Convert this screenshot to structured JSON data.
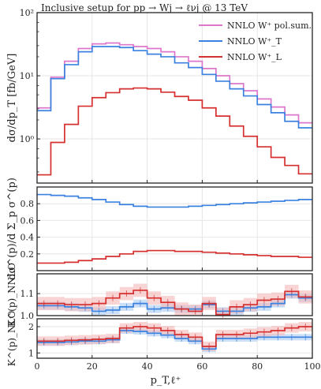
{
  "title": "Inclusive setup for pp → Wj → ℓνj @ 13 TeV",
  "legend": [
    {
      "label": "NNLO W⁺ pol.sum.",
      "color": "#dd77cc"
    },
    {
      "label": "NNLO W⁺_T",
      "color": "#3b82e0"
    },
    {
      "label": "NNLO W⁺_L",
      "color": "#d62f2f"
    }
  ],
  "colors": {
    "sum": "#dd77cc",
    "T": "#3b82e0",
    "L": "#d62f2f",
    "T_band": "#a9c9f2",
    "L_band": "#f4b7b7",
    "frame": "#222222"
  },
  "chart_data": [
    {
      "type": "line",
      "panel": "main",
      "ylabel": "dσ/dp_T [fb/GeV]",
      "yscale": "log",
      "ylim": [
        0.2,
        100
      ],
      "yticks": [
        "10⁰",
        "10¹",
        "10²"
      ],
      "x_edges": [
        0,
        5,
        10,
        15,
        20,
        25,
        30,
        35,
        40,
        45,
        50,
        55,
        60,
        65,
        70,
        75,
        80,
        85,
        90,
        95,
        100
      ],
      "series": [
        {
          "name": "NNLO W⁺ pol.sum.",
          "values": [
            3.1,
            9.5,
            17,
            27,
            32,
            33,
            31,
            29,
            27,
            24,
            20,
            17,
            13,
            10,
            7.5,
            5.8,
            4.3,
            3.2,
            2.4,
            1.8
          ]
        },
        {
          "name": "NNLO W⁺_T",
          "values": [
            2.8,
            9,
            15,
            24,
            29,
            29,
            28,
            25,
            22,
            20,
            16,
            13.5,
            10.5,
            8.2,
            6.2,
            4.8,
            3.5,
            2.6,
            1.9,
            1.5
          ]
        },
        {
          "name": "NNLO W⁺_L",
          "values": [
            0.27,
            0.88,
            1.7,
            3.3,
            4.5,
            5.4,
            6.2,
            6.4,
            6.2,
            5.5,
            4.7,
            4.1,
            3.1,
            2.3,
            1.6,
            1.1,
            0.75,
            0.51,
            0.38,
            0.28
          ]
        }
      ]
    },
    {
      "type": "line",
      "panel": "fraction",
      "ylabel": "dσ^(p)/d Σ_p σ^(p)",
      "yticks": [
        "0.2",
        "0.4",
        "0.6",
        "0.8"
      ],
      "ylim": [
        0,
        1.0
      ],
      "x_edges": [
        0,
        5,
        10,
        15,
        20,
        25,
        30,
        35,
        40,
        45,
        50,
        55,
        60,
        65,
        70,
        75,
        80,
        85,
        90,
        95,
        100
      ],
      "series": [
        {
          "name": "T",
          "values": [
            0.91,
            0.9,
            0.89,
            0.87,
            0.85,
            0.82,
            0.79,
            0.77,
            0.76,
            0.76,
            0.76,
            0.77,
            0.78,
            0.79,
            0.8,
            0.81,
            0.82,
            0.83,
            0.84,
            0.85
          ]
        },
        {
          "name": "L",
          "values": [
            0.09,
            0.09,
            0.1,
            0.12,
            0.14,
            0.17,
            0.2,
            0.23,
            0.24,
            0.24,
            0.23,
            0.23,
            0.22,
            0.21,
            0.2,
            0.19,
            0.18,
            0.17,
            0.17,
            0.16
          ]
        }
      ]
    },
    {
      "type": "line",
      "panel": "K_NNLO",
      "ylabel": "K^(p)_NNLO",
      "yticks": [
        "1.0",
        "1.1"
      ],
      "ylim": [
        1.0,
        1.19
      ],
      "x_edges": [
        0,
        5,
        10,
        15,
        20,
        25,
        30,
        35,
        40,
        45,
        50,
        55,
        60,
        65,
        70,
        75,
        80,
        85,
        90,
        95,
        100
      ],
      "series": [
        {
          "name": "T",
          "values": [
            1.045,
            1.045,
            1.04,
            1.035,
            1.02,
            1.025,
            1.04,
            1.055,
            1.03,
            1.035,
            1.03,
            1.03,
            1.05,
            1.02,
            1.02,
            1.035,
            1.04,
            1.055,
            1.095,
            1.08
          ]
        },
        {
          "name": "L",
          "values": [
            1.055,
            1.055,
            1.05,
            1.05,
            1.055,
            1.08,
            1.1,
            1.115,
            1.08,
            1.06,
            1.03,
            1.02,
            1.055,
            1.005,
            1.04,
            1.05,
            1.07,
            1.075,
            1.11,
            1.085
          ]
        }
      ],
      "band_halfwidth": {
        "T": 0.018,
        "L": 0.03
      }
    },
    {
      "type": "line",
      "panel": "K_NLO",
      "ylabel": "K^(p)_NLO",
      "xlabel": "p_T,ℓ⁺",
      "xlim": [
        0,
        100
      ],
      "xticks": [
        "0",
        "20",
        "40",
        "60",
        "80",
        "100"
      ],
      "yticks": [
        "1",
        "2"
      ],
      "ylim": [
        0.8,
        2.3
      ],
      "x_edges": [
        0,
        5,
        10,
        15,
        20,
        25,
        30,
        35,
        40,
        45,
        50,
        55,
        60,
        65,
        70,
        75,
        80,
        85,
        90,
        95,
        100
      ],
      "series": [
        {
          "name": "T",
          "values": [
            1.4,
            1.4,
            1.42,
            1.45,
            1.45,
            1.5,
            1.85,
            1.82,
            1.75,
            1.68,
            1.55,
            1.45,
            1.15,
            1.55,
            1.55,
            1.55,
            1.6,
            1.6,
            1.6,
            1.6
          ]
        },
        {
          "name": "L",
          "values": [
            1.45,
            1.45,
            1.48,
            1.5,
            1.52,
            1.55,
            1.95,
            2.0,
            1.95,
            1.85,
            1.7,
            1.6,
            1.25,
            1.7,
            1.7,
            1.75,
            1.8,
            1.85,
            1.95,
            2.0
          ]
        }
      ],
      "band_halfwidth": {
        "T": 0.12,
        "L": 0.18
      }
    }
  ]
}
